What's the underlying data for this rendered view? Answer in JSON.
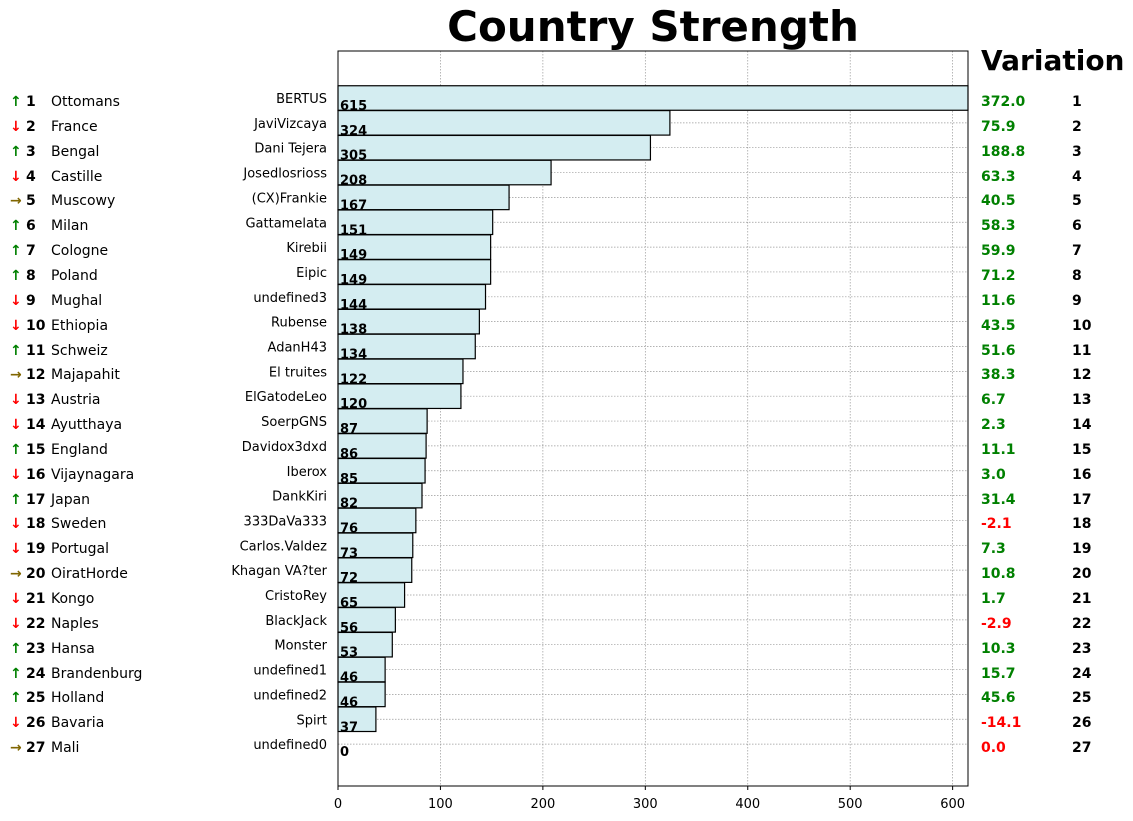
{
  "chart_data": {
    "type": "bar",
    "orientation": "horizontal",
    "title": "Country Strength",
    "categories": [
      "BERTUS",
      "JaviVizcaya",
      "Dani Tejera",
      "Josedlosrioss",
      "(CX)Frankie",
      "Gattamelata",
      "Kirebii",
      "Eipic",
      "undefined3",
      "Rubense",
      "AdanH43",
      "El truites",
      "ElGatodeLeo",
      "SoerpGNS",
      "Davidox3dxd",
      "Iberox",
      "DankKiri",
      "333DaVa333",
      "Carlos.Valdez",
      "Khagan VA?ter",
      "CristoRey",
      "BlackJack",
      "Monster",
      "undefined1",
      "undefined2",
      "Spirt",
      "undefined0"
    ],
    "values": [
      615,
      324,
      305,
      208,
      167,
      151,
      149,
      149,
      144,
      138,
      134,
      122,
      120,
      87,
      86,
      85,
      82,
      76,
      73,
      72,
      65,
      56,
      53,
      46,
      46,
      37,
      0
    ],
    "xlim": [
      0,
      615
    ],
    "xticks": [
      0,
      100,
      200,
      300,
      400,
      500,
      600
    ],
    "grid": true,
    "bar_color": "#d4edf1",
    "bar_edge_color": "#000000"
  },
  "variation": {
    "title": "Variation",
    "values": [
      "372.0",
      "75.9",
      "188.8",
      "63.3",
      "40.5",
      "58.3",
      "59.9",
      "71.2",
      "11.6",
      "43.5",
      "51.6",
      "38.3",
      "6.7",
      "2.3",
      "11.1",
      "3.0",
      "31.4",
      "-2.1",
      "7.3",
      "10.8",
      "1.7",
      "-2.9",
      "10.3",
      "15.7",
      "45.6",
      "-14.1",
      "0.0"
    ],
    "colors": [
      "#008000",
      "#008000",
      "#008000",
      "#008000",
      "#008000",
      "#008000",
      "#008000",
      "#008000",
      "#008000",
      "#008000",
      "#008000",
      "#008000",
      "#008000",
      "#008000",
      "#008000",
      "#008000",
      "#008000",
      "#ff0000",
      "#008000",
      "#008000",
      "#008000",
      "#ff0000",
      "#008000",
      "#008000",
      "#008000",
      "#ff0000",
      "#ff0000"
    ],
    "ranks": [
      "1",
      "2",
      "3",
      "4",
      "5",
      "6",
      "7",
      "8",
      "9",
      "10",
      "11",
      "12",
      "13",
      "14",
      "15",
      "16",
      "17",
      "18",
      "19",
      "20",
      "21",
      "22",
      "23",
      "24",
      "25",
      "26",
      "27"
    ]
  },
  "ranking": {
    "arrow_glyphs": {
      "up": "↑",
      "down": "↓",
      "same": "→"
    },
    "items": [
      {
        "trend": "up",
        "rank": "1",
        "country": "Ottomans"
      },
      {
        "trend": "down",
        "rank": "2",
        "country": "France"
      },
      {
        "trend": "up",
        "rank": "3",
        "country": "Bengal"
      },
      {
        "trend": "down",
        "rank": "4",
        "country": "Castille"
      },
      {
        "trend": "same",
        "rank": "5",
        "country": "Muscowy"
      },
      {
        "trend": "up",
        "rank": "6",
        "country": "Milan"
      },
      {
        "trend": "up",
        "rank": "7",
        "country": "Cologne"
      },
      {
        "trend": "up",
        "rank": "8",
        "country": "Poland"
      },
      {
        "trend": "down",
        "rank": "9",
        "country": "Mughal"
      },
      {
        "trend": "down",
        "rank": "10",
        "country": "Ethiopia"
      },
      {
        "trend": "up",
        "rank": "11",
        "country": "Schweiz"
      },
      {
        "trend": "same",
        "rank": "12",
        "country": "Majapahit"
      },
      {
        "trend": "down",
        "rank": "13",
        "country": "Austria"
      },
      {
        "trend": "down",
        "rank": "14",
        "country": "Ayutthaya"
      },
      {
        "trend": "up",
        "rank": "15",
        "country": "England"
      },
      {
        "trend": "down",
        "rank": "16",
        "country": "Vijaynagara"
      },
      {
        "trend": "up",
        "rank": "17",
        "country": "Japan"
      },
      {
        "trend": "down",
        "rank": "18",
        "country": "Sweden"
      },
      {
        "trend": "down",
        "rank": "19",
        "country": "Portugal"
      },
      {
        "trend": "same",
        "rank": "20",
        "country": "OiratHorde"
      },
      {
        "trend": "down",
        "rank": "21",
        "country": "Kongo"
      },
      {
        "trend": "down",
        "rank": "22",
        "country": "Naples"
      },
      {
        "trend": "up",
        "rank": "23",
        "country": "Hansa"
      },
      {
        "trend": "up",
        "rank": "24",
        "country": "Brandenburg"
      },
      {
        "trend": "up",
        "rank": "25",
        "country": "Holland"
      },
      {
        "trend": "down",
        "rank": "26",
        "country": "Bavaria"
      },
      {
        "trend": "same",
        "rank": "27",
        "country": "Mali"
      }
    ]
  }
}
